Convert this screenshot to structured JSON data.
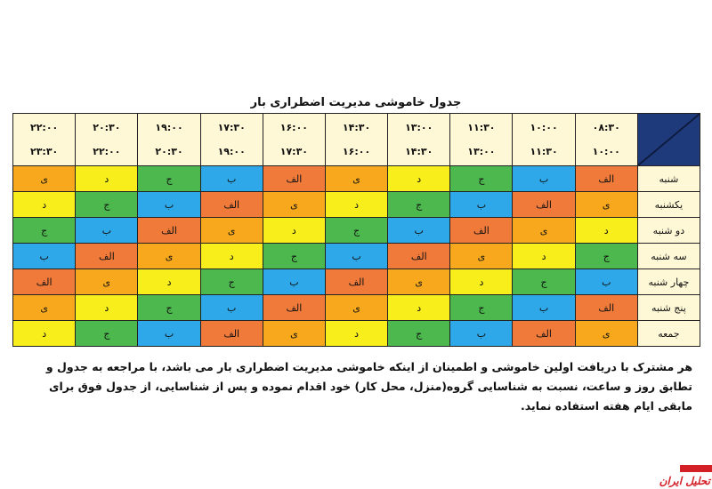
{
  "title": "جدول خاموشی مدیریت اضطراری بار",
  "time_slots": [
    {
      "from": "۰۸:۳۰",
      "to": "۱۰:۰۰"
    },
    {
      "from": "۱۰:۰۰",
      "to": "۱۱:۳۰"
    },
    {
      "from": "۱۱:۳۰",
      "to": "۱۳:۰۰"
    },
    {
      "from": "۱۳:۰۰",
      "to": "۱۴:۳۰"
    },
    {
      "from": "۱۴:۳۰",
      "to": "۱۶:۰۰"
    },
    {
      "from": "۱۶:۰۰",
      "to": "۱۷:۳۰"
    },
    {
      "from": "۱۷:۳۰",
      "to": "۱۹:۰۰"
    },
    {
      "from": "۱۹:۰۰",
      "to": "۲۰:۳۰"
    },
    {
      "from": "۲۰:۳۰",
      "to": "۲۲:۰۰"
    },
    {
      "from": "۲۲:۰۰",
      "to": "۲۳:۳۰"
    }
  ],
  "rows": [
    {
      "day": "شنبه",
      "cells": [
        "الف",
        "ب",
        "ج",
        "د",
        "ی",
        "الف",
        "ب",
        "ج",
        "د",
        "ی"
      ]
    },
    {
      "day": "یکشنبه",
      "cells": [
        "ی",
        "الف",
        "ب",
        "ج",
        "د",
        "ی",
        "الف",
        "ب",
        "ج",
        "د"
      ]
    },
    {
      "day": "دو شنبه",
      "cells": [
        "د",
        "ی",
        "الف",
        "ب",
        "ج",
        "د",
        "ی",
        "الف",
        "ب",
        "ج"
      ]
    },
    {
      "day": "سه شنبه",
      "cells": [
        "ج",
        "د",
        "ی",
        "الف",
        "ب",
        "ج",
        "د",
        "ی",
        "الف",
        "ب"
      ]
    },
    {
      "day": "چهار شنبه",
      "cells": [
        "ب",
        "ج",
        "د",
        "ی",
        "الف",
        "ب",
        "ج",
        "د",
        "ی",
        "الف"
      ]
    },
    {
      "day": "پنج شنبه",
      "cells": [
        "الف",
        "ب",
        "ج",
        "د",
        "ی",
        "الف",
        "ب",
        "ج",
        "د",
        "ی"
      ]
    },
    {
      "day": "جمعه",
      "cells": [
        "ی",
        "الف",
        "ب",
        "ج",
        "د",
        "ی",
        "الف",
        "ب",
        "ج",
        "د"
      ]
    }
  ],
  "group_colors": {
    "الف": "#f07a3a",
    "ب": "#2ea8e8",
    "ج": "#4cb84e",
    "د": "#f7ee1c",
    "ی": "#f7a81c"
  },
  "note": "هر مشترک با دریافت اولین خاموشی و اطمینان از اینکه خاموشی مدیریت اضطراری بار می باشد، با مراجعه به جدول و تطابق روز و ساعت، نسبت به شناسایی گروه(منزل، محل کار) خود اقدام نموده و پس از شناسایی، از جدول فوق برای مابقی ایام هفته استفاده نماید.",
  "watermark": "تحلیل ایران"
}
